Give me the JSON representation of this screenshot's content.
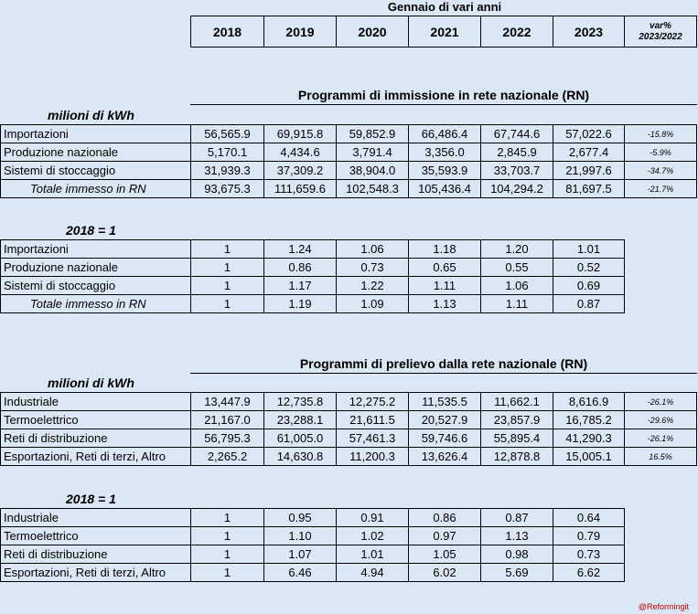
{
  "header": {
    "title": "Gennaio di vari anni",
    "years": [
      "2018",
      "2019",
      "2020",
      "2021",
      "2022",
      "2023"
    ],
    "var_label_1": "var%",
    "var_label_2": "2023/2022"
  },
  "section1": {
    "title": "Programmi di immissione in rete nazionale (RN)",
    "unit": "milioni di kWh",
    "rows": [
      {
        "label": "Importazioni",
        "values": [
          "56,565.9",
          "69,915.8",
          "59,852.9",
          "66,486.4",
          "67,744.6",
          "57,022.6"
        ],
        "var": "-15.8%"
      },
      {
        "label": "Produzione nazionale",
        "values": [
          "5,170.1",
          "4,434.6",
          "3,791.4",
          "3,356.0",
          "2,845.9",
          "2,677.4"
        ],
        "var": "-5.9%"
      },
      {
        "label": "Sistemi di stoccaggio",
        "values": [
          "31,939.3",
          "37,309.2",
          "38,904.0",
          "35,593.9",
          "33,703.7",
          "21,997.6"
        ],
        "var": "-34.7%"
      },
      {
        "label": "Totale immesso in RN",
        "values": [
          "93,675.3",
          "111,659.6",
          "102,548.3",
          "105,436.4",
          "104,294.2",
          "81,697.5"
        ],
        "var": "-21.7%"
      }
    ],
    "index_title": "2018 = 1",
    "index_rows": [
      {
        "label": "Importazioni",
        "values": [
          "1",
          "1.24",
          "1.06",
          "1.18",
          "1.20",
          "1.01"
        ]
      },
      {
        "label": "Produzione nazionale",
        "values": [
          "1",
          "0.86",
          "0.73",
          "0.65",
          "0.55",
          "0.52"
        ]
      },
      {
        "label": "Sistemi di stoccaggio",
        "values": [
          "1",
          "1.17",
          "1.22",
          "1.11",
          "1.06",
          "0.69"
        ]
      },
      {
        "label": "Totale immesso in RN",
        "values": [
          "1",
          "1.19",
          "1.09",
          "1.13",
          "1.11",
          "0.87"
        ]
      }
    ]
  },
  "section2": {
    "title": "Programmi di prelievo dalla rete nazionale (RN)",
    "unit": "milioni di kWh",
    "rows": [
      {
        "label": "Industriale",
        "values": [
          "13,447.9",
          "12,735.8",
          "12,275.2",
          "11,535.5",
          "11,662.1",
          "8,616.9"
        ],
        "var": "-26.1%"
      },
      {
        "label": "Termoelettrico",
        "values": [
          "21,167.0",
          "23,288.1",
          "21,611.5",
          "20,527.9",
          "23,857.9",
          "16,785.2"
        ],
        "var": "-29.6%"
      },
      {
        "label": "Reti di distribuzione",
        "values": [
          "56,795.3",
          "61,005.0",
          "57,461.3",
          "59,746.6",
          "55,895.4",
          "41,290.3"
        ],
        "var": "-26.1%"
      },
      {
        "label": "Esportazioni, Reti di terzi, Altro",
        "values": [
          "2,265.2",
          "14,630.8",
          "11,200.3",
          "13,626.4",
          "12,878.8",
          "15,005.1"
        ],
        "var": "16.5%"
      }
    ],
    "index_title": "2018 = 1",
    "index_rows": [
      {
        "label": "Industriale",
        "values": [
          "1",
          "0.95",
          "0.91",
          "0.86",
          "0.87",
          "0.64"
        ]
      },
      {
        "label": "Termoelettrico",
        "values": [
          "1",
          "1.10",
          "1.02",
          "0.97",
          "1.13",
          "0.79"
        ]
      },
      {
        "label": "Reti di distribuzione",
        "values": [
          "1",
          "1.07",
          "1.01",
          "1.05",
          "0.98",
          "0.73"
        ]
      },
      {
        "label": "Esportazioni, Reti di terzi, Altro",
        "values": [
          "1",
          "6.46",
          "4.94",
          "6.02",
          "5.69",
          "6.62"
        ]
      }
    ]
  },
  "footer": "@Reformingit"
}
